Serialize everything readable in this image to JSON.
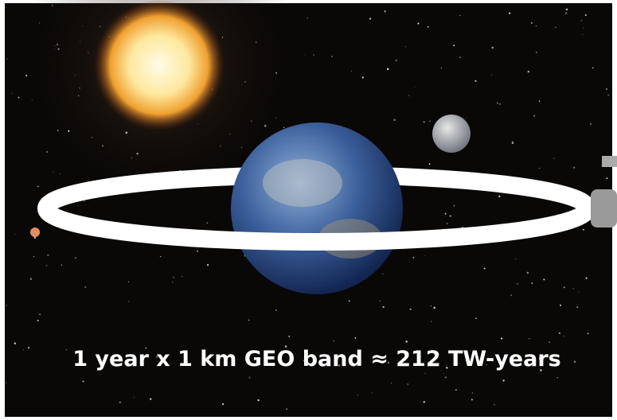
{
  "caption": "1 year x 1 km GEO band ≈ 212 TW-years"
}
